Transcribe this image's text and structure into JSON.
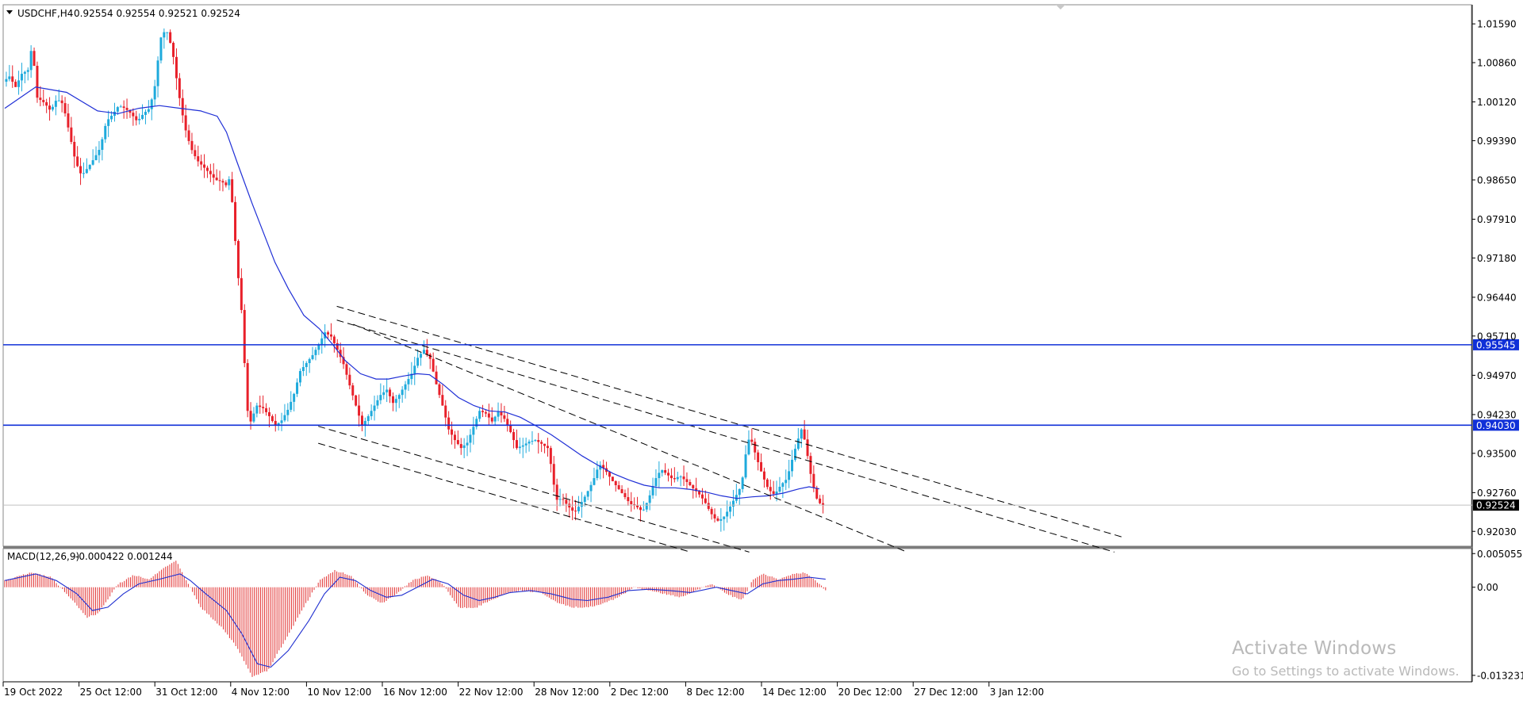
{
  "header": {
    "symbol": "USDCHF,H4",
    "ohlc": "0.92554 0.92554 0.92521 0.92524"
  },
  "macd_header": {
    "label": "MACD(12,26,9)",
    "values": "-0.000422 0.001244"
  },
  "watermark": {
    "title": "Activate Windows",
    "subtitle": "Go to Settings to activate Windows."
  },
  "colors": {
    "bull": "#1eaadc",
    "bear": "#e8202a",
    "ma": "#1f2fd6",
    "level": "#1030d8",
    "hist": "#e23030",
    "signal": "#2030d0"
  },
  "chart_data": [
    {
      "type": "candlestick",
      "symbol": "USDCHF",
      "timeframe": "H4",
      "x_labels": [
        "19 Oct 2022",
        "25 Oct 12:00",
        "31 Oct 12:00",
        "4 Nov 12:00",
        "10 Nov 12:00",
        "16 Nov 12:00",
        "22 Nov 12:00",
        "28 Nov 12:00",
        "2 Dec 12:00",
        "8 Dec 12:00",
        "14 Dec 12:00",
        "20 Dec 12:00",
        "27 Dec 12:00",
        "3 Jan 12:00"
      ],
      "y_ticks": [
        "1.01590",
        "1.00860",
        "1.00120",
        "0.99390",
        "0.98650",
        "0.97910",
        "0.97180",
        "0.96440",
        "0.95710",
        "0.94970",
        "0.94230",
        "0.93500",
        "0.92760",
        "0.92030"
      ],
      "ylim": [
        0.9175,
        1.0195
      ],
      "price_path": [
        [
          0,
          1.005
        ],
        [
          6,
          1.006
        ],
        [
          12,
          1.004
        ],
        [
          18,
          1.0065
        ],
        [
          24,
          1.0072
        ],
        [
          28,
          1.012
        ],
        [
          33,
          1.002
        ],
        [
          40,
          1.001
        ],
        [
          46,
          0.9995
        ],
        [
          52,
          1.0018
        ],
        [
          58,
          1.0008
        ],
        [
          64,
          0.9955
        ],
        [
          70,
          0.99
        ],
        [
          76,
          0.9873
        ],
        [
          82,
          0.9888
        ],
        [
          88,
          0.9905
        ],
        [
          94,
          0.9925
        ],
        [
          100,
          0.9975
        ],
        [
          106,
          0.9988
        ],
        [
          112,
          1.0005
        ],
        [
          118,
          1.0
        ],
        [
          124,
          0.999
        ],
        [
          130,
          0.9975
        ],
        [
          136,
          0.999
        ],
        [
          142,
          1.0
        ],
        [
          148,
          1.005
        ],
        [
          152,
          1.013
        ],
        [
          158,
          1.015
        ],
        [
          164,
          1.011
        ],
        [
          170,
          1.003
        ],
        [
          176,
          0.9965
        ],
        [
          182,
          0.9925
        ],
        [
          188,
          0.9902
        ],
        [
          194,
          0.989
        ],
        [
          200,
          0.9878
        ],
        [
          206,
          0.9865
        ],
        [
          212,
          0.9862
        ],
        [
          216,
          0.9855
        ],
        [
          220,
          0.987
        ],
        [
          223,
          0.98
        ],
        [
          227,
          0.97
        ],
        [
          231,
          0.962
        ],
        [
          234,
          0.952
        ],
        [
          237,
          0.943
        ],
        [
          240,
          0.941
        ],
        [
          246,
          0.944
        ],
        [
          252,
          0.9435
        ],
        [
          258,
          0.942
        ],
        [
          264,
          0.9402
        ],
        [
          270,
          0.9412
        ],
        [
          276,
          0.9432
        ],
        [
          282,
          0.9462
        ],
        [
          288,
          0.9505
        ],
        [
          294,
          0.952
        ],
        [
          300,
          0.9535
        ],
        [
          306,
          0.9555
        ],
        [
          312,
          0.9578
        ],
        [
          318,
          0.957
        ],
        [
          324,
          0.9545
        ],
        [
          330,
          0.9518
        ],
        [
          336,
          0.9478
        ],
        [
          342,
          0.944
        ],
        [
          348,
          0.9402
        ],
        [
          354,
          0.942
        ],
        [
          360,
          0.944
        ],
        [
          366,
          0.946
        ],
        [
          372,
          0.947
        ],
        [
          378,
          0.9445
        ],
        [
          384,
          0.946
        ],
        [
          390,
          0.948
        ],
        [
          396,
          0.95
        ],
        [
          402,
          0.953
        ],
        [
          408,
          0.9545
        ],
        [
          414,
          0.9528
        ],
        [
          420,
          0.948
        ],
        [
          426,
          0.944
        ],
        [
          432,
          0.9395
        ],
        [
          438,
          0.9375
        ],
        [
          444,
          0.936
        ],
        [
          450,
          0.937
        ],
        [
          456,
          0.94
        ],
        [
          462,
          0.943
        ],
        [
          468,
          0.9425
        ],
        [
          474,
          0.941
        ],
        [
          480,
          0.9428
        ],
        [
          486,
          0.9415
        ],
        [
          492,
          0.939
        ],
        [
          498,
          0.936
        ],
        [
          504,
          0.9365
        ],
        [
          510,
          0.9372
        ],
        [
          516,
          0.9375
        ],
        [
          522,
          0.9368
        ],
        [
          528,
          0.936
        ],
        [
          532,
          0.932
        ],
        [
          536,
          0.9262
        ],
        [
          542,
          0.9265
        ],
        [
          548,
          0.925
        ],
        [
          554,
          0.9238
        ],
        [
          560,
          0.9255
        ],
        [
          566,
          0.9275
        ],
        [
          572,
          0.9298
        ],
        [
          578,
          0.933
        ],
        [
          584,
          0.9318
        ],
        [
          590,
          0.93
        ],
        [
          596,
          0.9285
        ],
        [
          602,
          0.927
        ],
        [
          608,
          0.9255
        ],
        [
          614,
          0.925
        ],
        [
          620,
          0.924
        ],
        [
          626,
          0.9265
        ],
        [
          632,
          0.93
        ],
        [
          638,
          0.932
        ],
        [
          644,
          0.931
        ],
        [
          650,
          0.93
        ],
        [
          656,
          0.9308
        ],
        [
          662,
          0.9298
        ],
        [
          668,
          0.9286
        ],
        [
          674,
          0.9275
        ],
        [
          680,
          0.926
        ],
        [
          686,
          0.9238
        ],
        [
          692,
          0.9222
        ],
        [
          698,
          0.9228
        ],
        [
          704,
          0.9246
        ],
        [
          710,
          0.9268
        ],
        [
          716,
          0.929
        ],
        [
          720,
          0.9348
        ],
        [
          724,
          0.9385
        ],
        [
          730,
          0.9345
        ],
        [
          736,
          0.931
        ],
        [
          742,
          0.9282
        ],
        [
          748,
          0.9272
        ],
        [
          754,
          0.929
        ],
        [
          760,
          0.9302
        ],
        [
          766,
          0.9345
        ],
        [
          770,
          0.9372
        ],
        [
          774,
          0.9395
        ],
        [
          778,
          0.937
        ],
        [
          782,
          0.932
        ],
        [
          786,
          0.9285
        ],
        [
          790,
          0.9258
        ],
        [
          796,
          0.9252
        ]
      ],
      "moving_average": [
        [
          0,
          1.0
        ],
        [
          30,
          1.004
        ],
        [
          60,
          1.003
        ],
        [
          90,
          0.9995
        ],
        [
          110,
          0.999
        ],
        [
          130,
          1.0
        ],
        [
          150,
          1.0005
        ],
        [
          170,
          1.0
        ],
        [
          190,
          0.9995
        ],
        [
          206,
          0.9985
        ],
        [
          215,
          0.9955
        ],
        [
          225,
          0.99
        ],
        [
          240,
          0.982
        ],
        [
          252,
          0.976
        ],
        [
          262,
          0.971
        ],
        [
          275,
          0.966
        ],
        [
          290,
          0.961
        ],
        [
          305,
          0.9585
        ],
        [
          318,
          0.9555
        ],
        [
          330,
          0.9525
        ],
        [
          345,
          0.95
        ],
        [
          360,
          0.949
        ],
        [
          372,
          0.949
        ],
        [
          385,
          0.9495
        ],
        [
          400,
          0.95
        ],
        [
          412,
          0.9498
        ],
        [
          425,
          0.948
        ],
        [
          440,
          0.9455
        ],
        [
          455,
          0.944
        ],
        [
          470,
          0.943
        ],
        [
          485,
          0.9428
        ],
        [
          500,
          0.9418
        ],
        [
          515,
          0.9402
        ],
        [
          530,
          0.9385
        ],
        [
          545,
          0.9365
        ],
        [
          560,
          0.9345
        ],
        [
          575,
          0.9328
        ],
        [
          590,
          0.9312
        ],
        [
          605,
          0.93
        ],
        [
          620,
          0.929
        ],
        [
          635,
          0.9285
        ],
        [
          650,
          0.9285
        ],
        [
          665,
          0.9282
        ],
        [
          680,
          0.9277
        ],
        [
          695,
          0.927
        ],
        [
          710,
          0.9265
        ],
        [
          725,
          0.9268
        ],
        [
          740,
          0.927
        ],
        [
          755,
          0.9275
        ],
        [
          770,
          0.9283
        ],
        [
          780,
          0.9287
        ],
        [
          790,
          0.9283
        ]
      ],
      "horizontal_levels": [
        {
          "price": 0.95545,
          "label": "0.95545"
        },
        {
          "price": 0.9403,
          "label": "0.94030"
        }
      ],
      "current_price": {
        "price": 0.92524,
        "label": "0.92524"
      },
      "trend_lines": [
        {
          "from": [
            322,
            0.9627
          ],
          "to": [
            1086,
            0.9191
          ]
        },
        {
          "from": [
            322,
            0.9601
          ],
          "to": [
            1076,
            0.9164
          ]
        },
        {
          "from": [
            338,
            0.9593
          ],
          "to": [
            875,
            0.9164
          ]
        },
        {
          "from": [
            304,
            0.9401
          ],
          "to": [
            722,
            0.9164
          ]
        },
        {
          "from": [
            304,
            0.9369
          ],
          "to": [
            665,
            0.9164
          ]
        }
      ]
    },
    {
      "type": "macd",
      "title": "MACD(12,26,9)",
      "main_value": -0.000422,
      "signal_value": 0.001244,
      "y_ticks": [
        "0.005055",
        "0.00",
        "-0.013231"
      ],
      "ylim": [
        -0.0142,
        0.0058
      ],
      "histogram_path": [
        [
          0,
          0.001
        ],
        [
          25,
          0.0022
        ],
        [
          45,
          0.0015
        ],
        [
          60,
          -0.001
        ],
        [
          80,
          -0.0045
        ],
        [
          90,
          -0.004
        ],
        [
          110,
          0.0005
        ],
        [
          125,
          0.0018
        ],
        [
          140,
          0.0012
        ],
        [
          155,
          0.003
        ],
        [
          166,
          0.004
        ],
        [
          176,
          0.001
        ],
        [
          190,
          -0.003
        ],
        [
          210,
          -0.006
        ],
        [
          225,
          -0.009
        ],
        [
          240,
          -0.0135
        ],
        [
          255,
          -0.0125
        ],
        [
          270,
          -0.0085
        ],
        [
          290,
          -0.003
        ],
        [
          305,
          0.001
        ],
        [
          320,
          0.0025
        ],
        [
          335,
          0.0018
        ],
        [
          350,
          -0.001
        ],
        [
          365,
          -0.0025
        ],
        [
          380,
          -0.001
        ],
        [
          395,
          0.001
        ],
        [
          410,
          0.0018
        ],
        [
          425,
          0.0005
        ],
        [
          440,
          -0.003
        ],
        [
          455,
          -0.0032
        ],
        [
          470,
          -0.002
        ],
        [
          485,
          -0.001
        ],
        [
          500,
          -0.0005
        ],
        [
          520,
          -0.0008
        ],
        [
          535,
          -0.0022
        ],
        [
          550,
          -0.003
        ],
        [
          565,
          -0.003
        ],
        [
          580,
          -0.0025
        ],
        [
          595,
          -0.0015
        ],
        [
          610,
          0.0
        ],
        [
          625,
          -0.0005
        ],
        [
          640,
          -0.001
        ],
        [
          655,
          -0.0015
        ],
        [
          670,
          -0.0005
        ],
        [
          685,
          0.0005
        ],
        [
          700,
          -0.001
        ],
        [
          715,
          -0.002
        ],
        [
          725,
          0.001
        ],
        [
          735,
          0.002
        ],
        [
          750,
          0.0012
        ],
        [
          765,
          0.002
        ],
        [
          775,
          0.0022
        ],
        [
          785,
          0.0012
        ],
        [
          796,
          -0.0004
        ]
      ],
      "signal_path": [
        [
          0,
          0.001
        ],
        [
          30,
          0.002
        ],
        [
          50,
          0.001
        ],
        [
          70,
          -0.001
        ],
        [
          85,
          -0.0035
        ],
        [
          100,
          -0.003
        ],
        [
          115,
          -0.001
        ],
        [
          130,
          0.0005
        ],
        [
          150,
          0.0012
        ],
        [
          170,
          0.002
        ],
        [
          180,
          0.001
        ],
        [
          195,
          -0.001
        ],
        [
          215,
          -0.0035
        ],
        [
          230,
          -0.007
        ],
        [
          245,
          -0.0115
        ],
        [
          258,
          -0.012
        ],
        [
          275,
          -0.0095
        ],
        [
          295,
          -0.005
        ],
        [
          310,
          -0.001
        ],
        [
          325,
          0.0015
        ],
        [
          340,
          0.001
        ],
        [
          355,
          -0.0005
        ],
        [
          370,
          -0.0015
        ],
        [
          385,
          -0.0012
        ],
        [
          400,
          0.0
        ],
        [
          415,
          0.0012
        ],
        [
          430,
          0.0005
        ],
        [
          445,
          -0.0012
        ],
        [
          460,
          -0.002
        ],
        [
          475,
          -0.0015
        ],
        [
          490,
          -0.0008
        ],
        [
          510,
          -0.0005
        ],
        [
          530,
          -0.001
        ],
        [
          550,
          -0.0018
        ],
        [
          565,
          -0.002
        ],
        [
          585,
          -0.0015
        ],
        [
          605,
          -0.0005
        ],
        [
          625,
          -0.0003
        ],
        [
          645,
          -0.0005
        ],
        [
          665,
          -0.0008
        ],
        [
          690,
          0.0
        ],
        [
          705,
          -0.0005
        ],
        [
          720,
          -0.001
        ],
        [
          735,
          0.0005
        ],
        [
          750,
          0.001
        ],
        [
          765,
          0.0012
        ],
        [
          780,
          0.0015
        ],
        [
          796,
          0.0012
        ]
      ]
    }
  ]
}
